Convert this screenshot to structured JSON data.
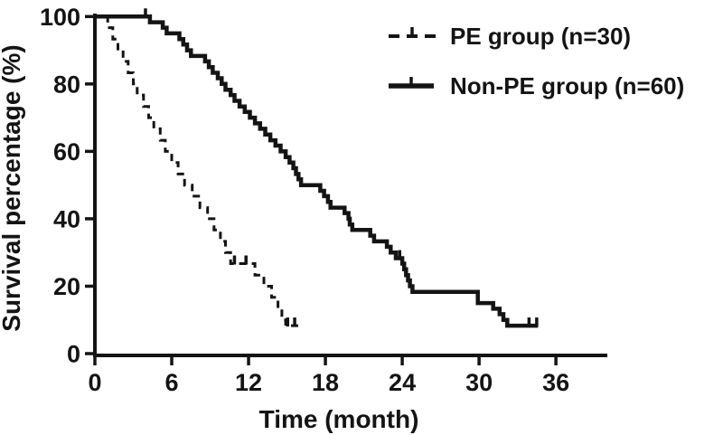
{
  "figure": {
    "background_color": "#ffffff",
    "line_color": "#141414"
  },
  "legend": {
    "position": "top-right",
    "items": [
      {
        "label": "PE group (n=30)",
        "style": "dashed",
        "marker": "dashed-line-with-censor-tick"
      },
      {
        "label": "Non-PE group (n=60)",
        "style": "solid",
        "marker": "solid-line-with-censor-tick"
      }
    ]
  },
  "chart_data": {
    "type": "line",
    "subtype": "kaplan-meier-step",
    "title": "",
    "xlabel": "Time (month)",
    "ylabel": "Survival percentage (%)",
    "xlim": [
      0,
      40
    ],
    "ylim": [
      0,
      100
    ],
    "xticks": [
      0,
      6,
      12,
      18,
      24,
      30,
      36
    ],
    "yticks": [
      0,
      20,
      40,
      60,
      80,
      100
    ],
    "grid": false,
    "legend_position": "top-right",
    "series": [
      {
        "name": "PE group",
        "legend_label": "PE group (n=30)",
        "n": 30,
        "line": "dashed",
        "points": [
          [
            0.9,
            100
          ],
          [
            1.0,
            96.7
          ],
          [
            1.4,
            93.3
          ],
          [
            1.8,
            90
          ],
          [
            2.2,
            86.7
          ],
          [
            2.6,
            83.3
          ],
          [
            3.0,
            80
          ],
          [
            3.3,
            76.7
          ],
          [
            3.8,
            73.3
          ],
          [
            4.2,
            70
          ],
          [
            4.6,
            66.7
          ],
          [
            5.1,
            63.3
          ],
          [
            5.5,
            60
          ],
          [
            6.0,
            56.7
          ],
          [
            6.5,
            53.3
          ],
          [
            7.0,
            50
          ],
          [
            7.6,
            46.7
          ],
          [
            8.2,
            43.3
          ],
          [
            8.8,
            40
          ],
          [
            9.3,
            36.7
          ],
          [
            9.8,
            33.3
          ],
          [
            10.2,
            30
          ],
          [
            10.6,
            26.7
          ],
          [
            12.5,
            23.3
          ],
          [
            13.2,
            20
          ],
          [
            13.8,
            16.7
          ],
          [
            14.3,
            13.3
          ],
          [
            14.6,
            10
          ],
          [
            14.9,
            8.3
          ]
        ],
        "end_time": 16.0,
        "censor_marks": [
          [
            10.9,
            26.7
          ],
          [
            11.8,
            26.7
          ],
          [
            15.05,
            8.3
          ],
          [
            15.6,
            8.3
          ]
        ]
      },
      {
        "name": "Non-PE group",
        "legend_label": "Non-PE group (n=60)",
        "n": 60,
        "line": "solid",
        "points": [
          [
            0,
            100
          ],
          [
            4.3,
            98.3
          ],
          [
            5.3,
            96.7
          ],
          [
            5.6,
            95
          ],
          [
            6.6,
            93.3
          ],
          [
            6.9,
            91.7
          ],
          [
            7.2,
            90
          ],
          [
            7.5,
            88.3
          ],
          [
            8.6,
            86.7
          ],
          [
            8.9,
            85
          ],
          [
            9.2,
            83.3
          ],
          [
            9.6,
            81.7
          ],
          [
            9.9,
            80
          ],
          [
            10.2,
            78.3
          ],
          [
            10.6,
            76.7
          ],
          [
            10.9,
            75
          ],
          [
            11.3,
            73.3
          ],
          [
            11.7,
            71.7
          ],
          [
            12.1,
            70
          ],
          [
            12.5,
            68.3
          ],
          [
            12.9,
            66.7
          ],
          [
            13.3,
            65
          ],
          [
            13.7,
            63.3
          ],
          [
            14.1,
            61.7
          ],
          [
            14.5,
            60
          ],
          [
            14.9,
            58.3
          ],
          [
            15.2,
            56.7
          ],
          [
            15.5,
            55
          ],
          [
            15.7,
            53.3
          ],
          [
            15.9,
            51.7
          ],
          [
            16.1,
            50
          ],
          [
            17.6,
            48.3
          ],
          [
            17.9,
            46.7
          ],
          [
            18.2,
            45
          ],
          [
            18.4,
            43.3
          ],
          [
            19.5,
            41.7
          ],
          [
            19.8,
            40
          ],
          [
            19.9,
            38.3
          ],
          [
            20.1,
            36.7
          ],
          [
            21.5,
            35
          ],
          [
            21.8,
            33.3
          ],
          [
            22.8,
            31.7
          ],
          [
            23.1,
            30
          ],
          [
            23.5,
            28.3
          ],
          [
            24.0,
            26.7
          ],
          [
            24.15,
            25
          ],
          [
            24.3,
            23.3
          ],
          [
            24.45,
            21.7
          ],
          [
            24.6,
            20
          ],
          [
            24.8,
            18.3
          ],
          [
            29.9,
            15
          ],
          [
            31.1,
            13.3
          ],
          [
            31.6,
            11.7
          ],
          [
            31.9,
            10
          ],
          [
            32.2,
            8.3
          ]
        ],
        "end_time": 34.6,
        "censor_marks": [
          [
            3.95,
            100
          ],
          [
            23.8,
            28.3
          ],
          [
            33.9,
            8.3
          ],
          [
            34.5,
            8.3
          ]
        ]
      }
    ]
  }
}
